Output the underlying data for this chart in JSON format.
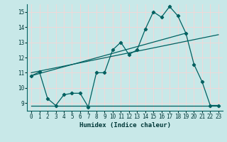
{
  "xlabel": "Humidex (Indice chaleur)",
  "bg_color": "#c8e8e8",
  "grid_color": "#f0d8d8",
  "line_color": "#006060",
  "xlim": [
    -0.5,
    23.5
  ],
  "ylim": [
    8.5,
    15.5
  ],
  "xticks": [
    0,
    1,
    2,
    3,
    4,
    5,
    6,
    7,
    8,
    9,
    10,
    11,
    12,
    13,
    14,
    15,
    16,
    17,
    18,
    19,
    20,
    21,
    22,
    23
  ],
  "yticks": [
    9,
    10,
    11,
    12,
    13,
    14,
    15
  ],
  "line1_x": [
    0,
    1,
    2,
    3,
    4,
    5,
    6,
    7,
    8,
    9,
    10,
    11,
    12,
    13,
    14,
    15,
    16,
    17,
    18,
    19,
    20,
    21,
    22,
    23
  ],
  "line1_y": [
    10.8,
    11.05,
    9.3,
    8.85,
    9.55,
    9.65,
    9.65,
    8.75,
    11.0,
    11.0,
    12.5,
    13.0,
    12.2,
    12.5,
    13.85,
    15.0,
    14.65,
    15.35,
    14.75,
    13.6,
    11.55,
    10.4,
    8.85,
    8.85
  ],
  "line2_x": [
    0,
    23
  ],
  "line2_y": [
    11.0,
    13.5
  ],
  "line3_x": [
    0,
    23
  ],
  "line3_y": [
    8.85,
    8.85
  ],
  "line4_x": [
    0,
    19
  ],
  "line4_y": [
    10.8,
    13.6
  ]
}
